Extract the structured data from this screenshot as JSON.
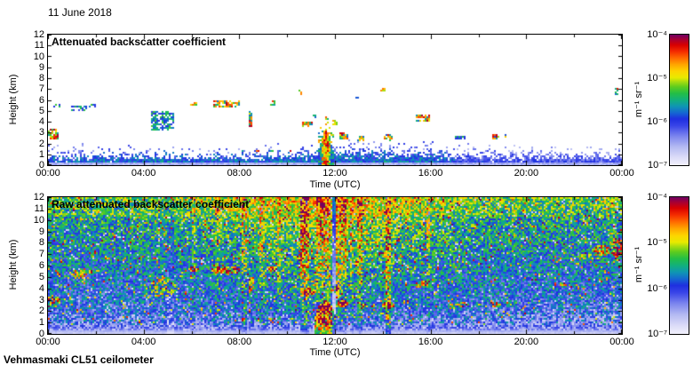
{
  "meta": {
    "date_label": "11 June 2018",
    "footer": "Vehmasmaki CL51 ceilometer"
  },
  "axes": {
    "x_label": "Time (UTC)",
    "y_label": "Height (km)",
    "x_ticks": [
      "00:00",
      "04:00",
      "08:00",
      "12:00",
      "16:00",
      "20:00",
      "00:00"
    ],
    "y_ticks": [
      "0",
      "1",
      "2",
      "3",
      "4",
      "5",
      "6",
      "7",
      "8",
      "9",
      "10",
      "11",
      "12"
    ],
    "x_range_hours": [
      0,
      24
    ],
    "y_range_km": [
      0,
      12
    ]
  },
  "colorbar": {
    "unit": "m⁻¹ sr⁻¹",
    "tick_labels": [
      "10⁻⁴",
      "10⁻⁵",
      "10⁻⁶",
      "10⁻⁷"
    ],
    "scale": "log",
    "range_m1sr1": [
      "1e-7",
      "1e-4"
    ],
    "stops": [
      [
        0.0,
        "#f2f1fc"
      ],
      [
        0.06,
        "#dcdcf8"
      ],
      [
        0.14,
        "#b4baf2"
      ],
      [
        0.22,
        "#7d86ee"
      ],
      [
        0.3,
        "#3a46e8"
      ],
      [
        0.355,
        "#1e2fe0"
      ],
      [
        0.4,
        "#1565d2"
      ],
      [
        0.45,
        "#0f95b4"
      ],
      [
        0.5,
        "#12b07c"
      ],
      [
        0.55,
        "#23be46"
      ],
      [
        0.6,
        "#5ecc1e"
      ],
      [
        0.64,
        "#a8dc10"
      ],
      [
        0.67,
        "#e8ea00"
      ],
      [
        0.72,
        "#fdd400"
      ],
      [
        0.77,
        "#ffa600"
      ],
      [
        0.82,
        "#ff6a00"
      ],
      [
        0.87,
        "#f42c00"
      ],
      [
        0.92,
        "#d80000"
      ],
      [
        0.96,
        "#aa0030"
      ],
      [
        1.0,
        "#6e0064"
      ]
    ]
  },
  "panels": [
    {
      "title": "Attenuated backscatter coefficient"
    },
    {
      "title": "Raw attenuated backscatter coefficient"
    }
  ],
  "chart_data": [
    {
      "type": "heatmap",
      "title": "Attenuated backscatter coefficient",
      "xlabel": "Time (UTC)",
      "ylabel": "Height (km)",
      "x_range_hours": [
        0,
        24
      ],
      "y_range_km": [
        0,
        12
      ],
      "value_scale": "log10 backscatter, 1e-7 to 1e-4 m-1 sr-1",
      "seed": 20180611,
      "background": "white (below noise floor)",
      "boundary_layer": {
        "base_km": 1.0,
        "midday_amp_km": 0.45,
        "midday_center_hour": 13.5,
        "midday_sigma_hours": 3.2,
        "jitter_km": 0.38,
        "fade_after_hour": 17,
        "ground_band_km": 0.28
      },
      "rain_event": {
        "start_hour": 11.32,
        "end_hour": 11.98,
        "center_hour": 11.62,
        "top_km": 3.3
      },
      "clouds": [
        [
          0.15,
          2.85,
          0.3,
          0.45,
          1
        ],
        [
          0.35,
          5.5,
          0.15,
          0.12,
          0
        ],
        [
          1.3,
          5.3,
          0.3,
          0.25,
          0
        ],
        [
          1.85,
          5.45,
          0.12,
          0.15,
          0
        ],
        [
          4.8,
          4.1,
          0.5,
          0.85,
          0
        ],
        [
          6.1,
          5.65,
          0.15,
          0.2,
          1
        ],
        [
          7.45,
          5.6,
          0.55,
          0.3,
          1
        ],
        [
          8.5,
          4.3,
          0.07,
          0.75,
          1
        ],
        [
          9.4,
          5.7,
          0.12,
          0.2,
          1
        ],
        [
          10.55,
          6.7,
          0.07,
          0.3,
          1
        ],
        [
          10.9,
          3.7,
          0.25,
          0.25,
          1
        ],
        [
          11.15,
          4.5,
          0.1,
          0.2,
          0
        ],
        [
          12.0,
          3.9,
          0.1,
          0.2,
          1
        ],
        [
          12.35,
          2.7,
          0.2,
          0.3,
          1
        ],
        [
          12.9,
          6.2,
          0.08,
          0.15,
          1
        ],
        [
          13.1,
          2.5,
          0.15,
          0.25,
          1
        ],
        [
          14.0,
          7.0,
          0.1,
          0.15,
          1
        ],
        [
          14.25,
          2.5,
          0.2,
          0.3,
          1
        ],
        [
          15.7,
          4.35,
          0.3,
          0.3,
          1
        ],
        [
          17.15,
          2.55,
          0.3,
          0.18,
          0
        ],
        [
          18.7,
          2.6,
          0.15,
          0.2,
          1
        ],
        [
          19.2,
          2.7,
          0.07,
          0.12,
          1
        ],
        [
          23.8,
          6.8,
          0.08,
          0.4,
          1
        ],
        [
          8.2,
          1.25,
          0.08,
          0.1,
          1
        ],
        [
          8.75,
          1.3,
          0.08,
          0.1,
          1
        ],
        [
          9.35,
          1.3,
          0.07,
          0.1,
          1
        ],
        [
          10.2,
          1.35,
          0.07,
          0.1,
          1
        ]
      ]
    },
    {
      "type": "heatmap",
      "title": "Raw attenuated backscatter coefficient",
      "xlabel": "Time (UTC)",
      "ylabel": "Height (km)",
      "x_range_hours": [
        0,
        24
      ],
      "y_range_km": [
        0,
        12
      ],
      "value_scale": "log10 backscatter, 1e-7 to 1e-4 m-1 sr-1",
      "seed": 611,
      "noise": {
        "base": 0.27,
        "height_gain": 0.25,
        "height_exp": 0.85,
        "day_boost": 0.16,
        "day_center_hour": 11.8,
        "day_sigma_hours": 4.6,
        "top_extra_above_km": 10.3,
        "top_extra": 0.05,
        "speckle_white_prob": 0.035,
        "hot_spike_prob": 0.05,
        "low_white_zone_km": 1.8,
        "low_white_zone_night_growth": 0.13,
        "ground_band_km": 0.33
      },
      "stripes": [
        [
          5.0,
          5.3,
          -0.06,
          0
        ],
        [
          6.0,
          6.15,
          0.05,
          1
        ],
        [
          7.0,
          7.2,
          0.06,
          1
        ],
        [
          8.1,
          8.35,
          0.13,
          1
        ],
        [
          8.85,
          9.05,
          0.1,
          1
        ],
        [
          9.6,
          9.75,
          0.08,
          1
        ],
        [
          10.55,
          10.95,
          0.2,
          1
        ],
        [
          11.25,
          11.5,
          0.16,
          1
        ],
        [
          11.5,
          11.8,
          0.12,
          1
        ],
        [
          11.87,
          12.02,
          -0.3,
          0
        ],
        [
          12.05,
          12.45,
          0.14,
          1
        ],
        [
          12.6,
          12.75,
          0.08,
          1
        ],
        [
          12.95,
          13.15,
          0.16,
          1
        ],
        [
          14.15,
          14.32,
          0.22,
          0
        ],
        [
          15.85,
          16.0,
          0.1,
          1
        ]
      ],
      "rain_blob": [
        11.6,
        0.7,
        0.45,
        2.2,
        0.5
      ],
      "extra_blobs": [
        [
          23.15,
          7.3,
          0.4,
          0.45,
          0.3
        ],
        [
          23.8,
          7.6,
          0.3,
          0.9,
          0.3
        ],
        [
          22.4,
          6.9,
          0.35,
          0.3,
          0.12
        ]
      ],
      "clouds_shared_with_panel_0": true
    }
  ]
}
